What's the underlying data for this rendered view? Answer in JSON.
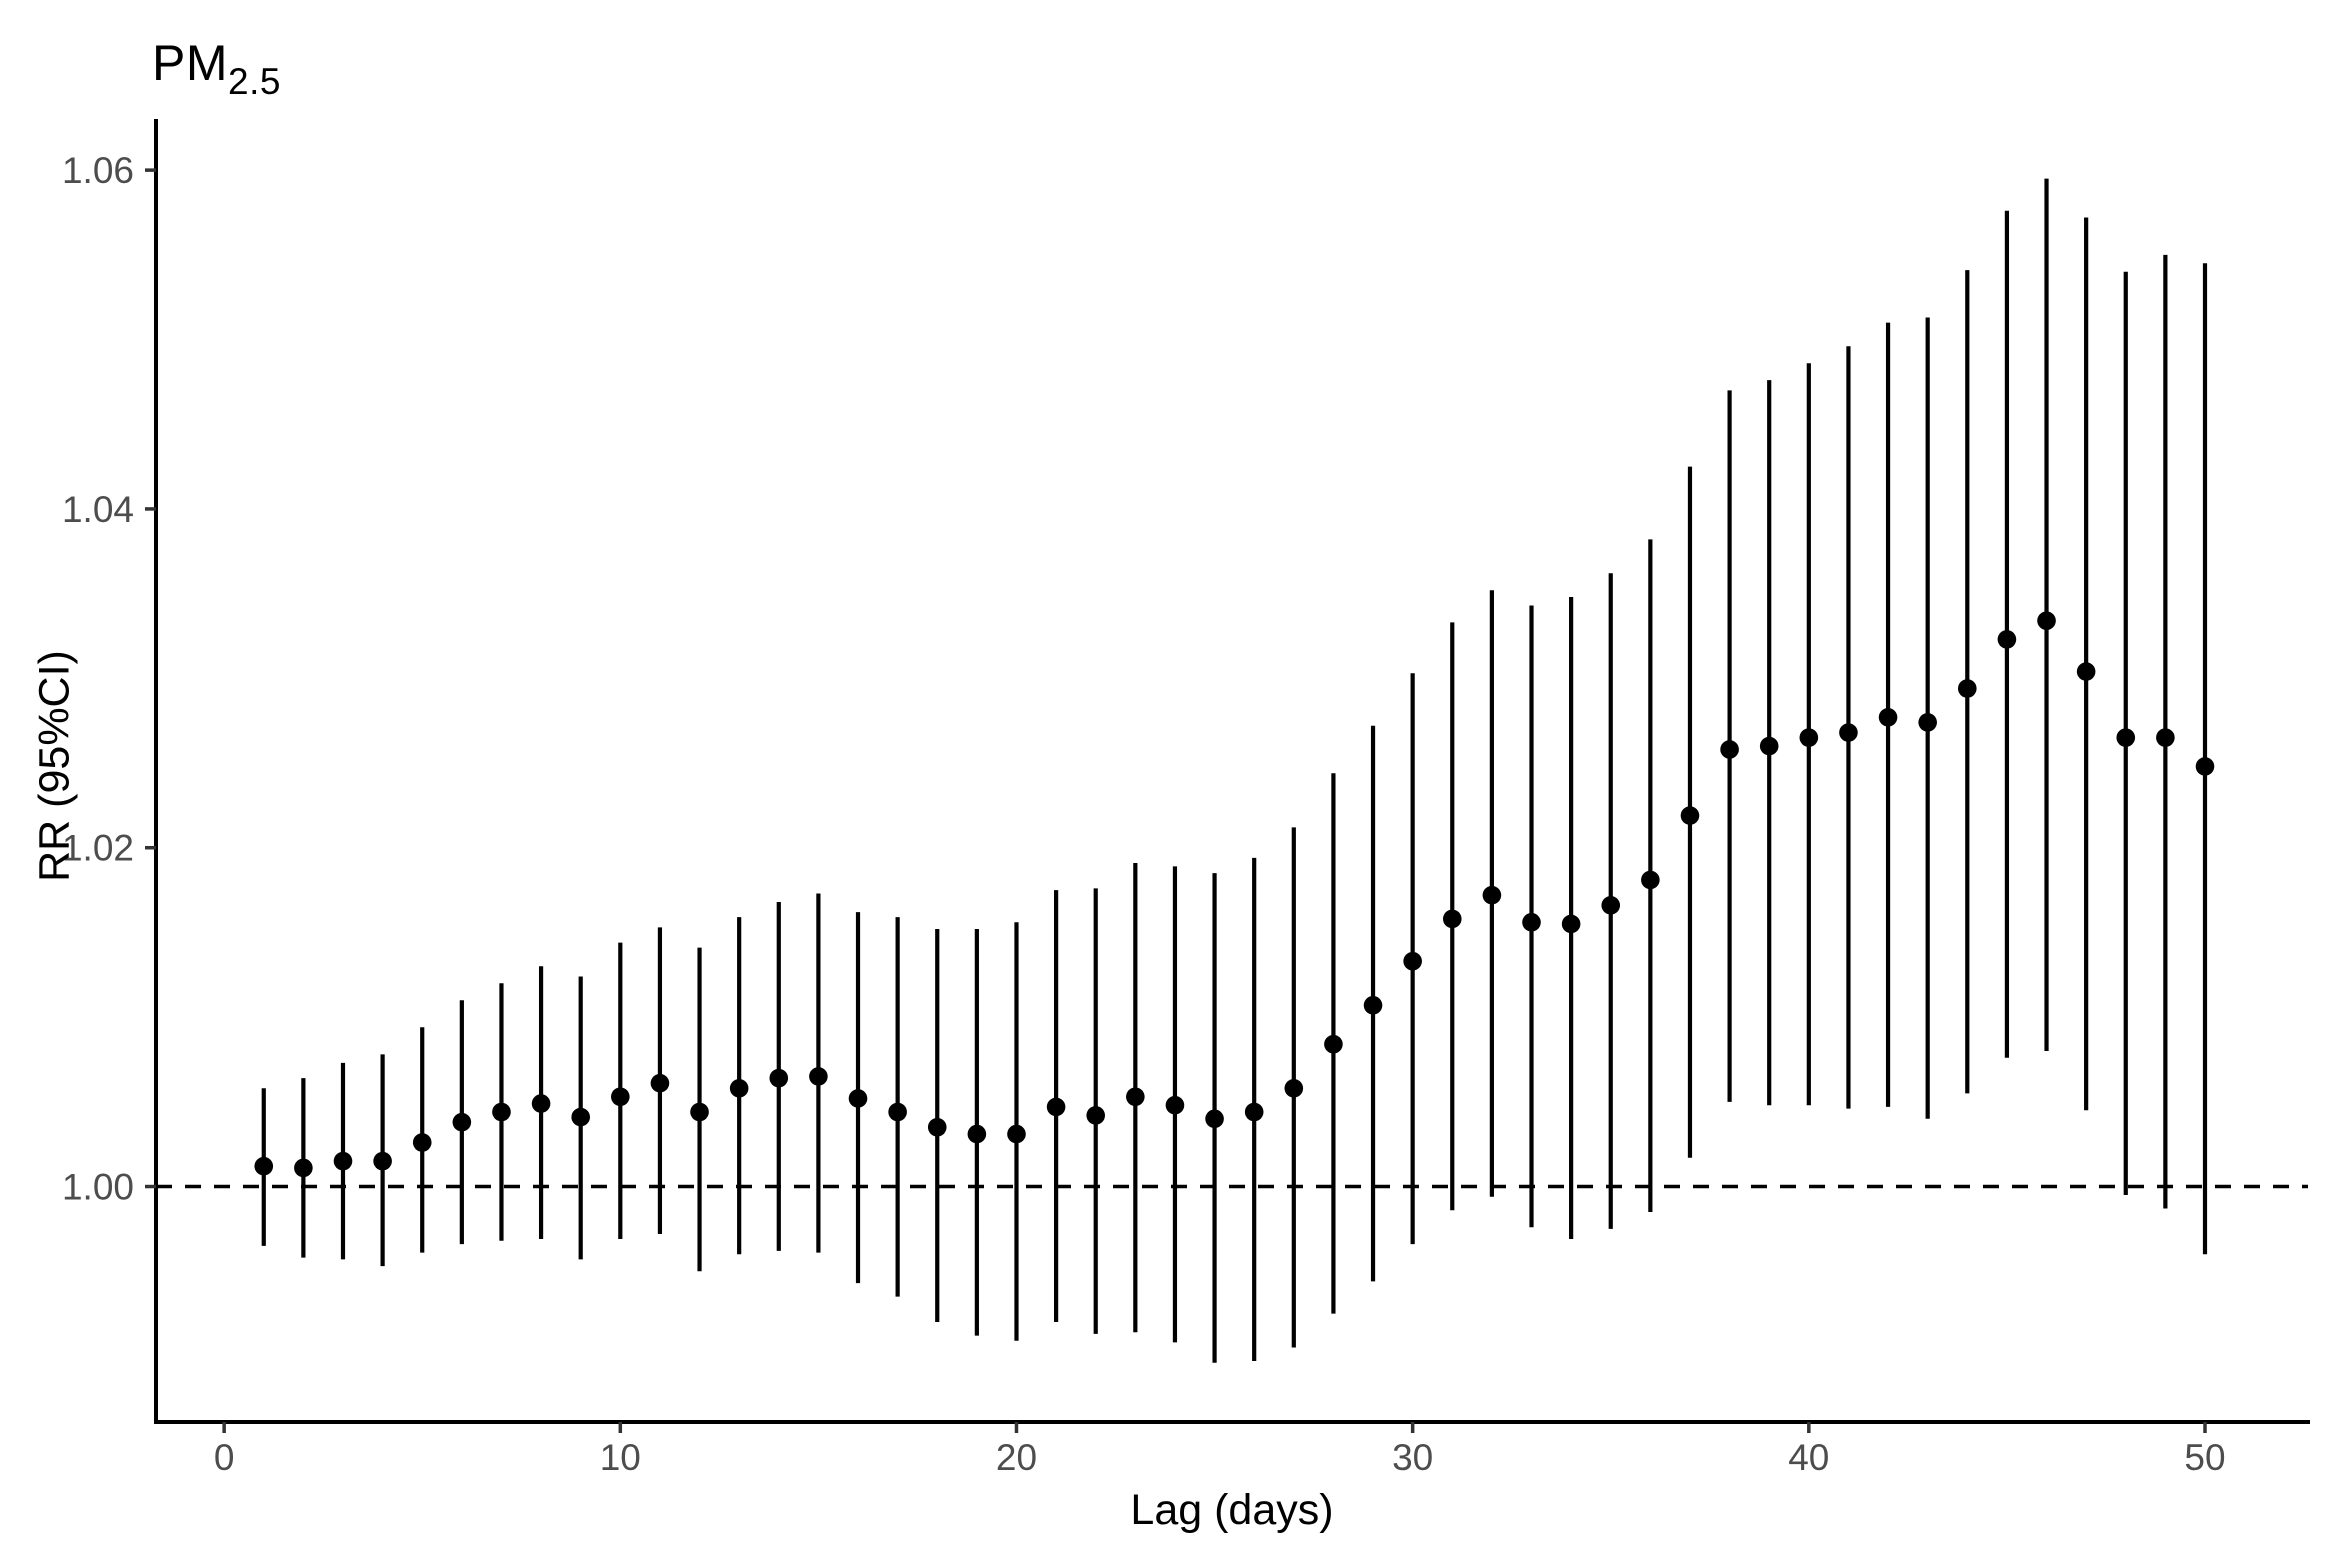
{
  "title": {
    "main": "PM",
    "sub": "2.5"
  },
  "axes": {
    "x_title": "Lag (days)",
    "y_title": "RR (95%CI)"
  },
  "chart_data": {
    "type": "scatter",
    "error_bars": true,
    "title": "PM2.5",
    "xlabel": "Lag (days)",
    "ylabel": "RR (95%CI)",
    "xlim": [
      -1.72,
      52.6
    ],
    "ylim": [
      0.9861,
      1.0629
    ],
    "grid": "off",
    "legend": "none",
    "reference_line_y": 1.0,
    "reference_line_style": "dashed",
    "x_ticks": [
      {
        "v": 0,
        "label": "0"
      },
      {
        "v": 10,
        "label": "10"
      },
      {
        "v": 20,
        "label": "20"
      },
      {
        "v": 30,
        "label": "30"
      },
      {
        "v": 40,
        "label": "40"
      },
      {
        "v": 50,
        "label": "50"
      }
    ],
    "y_ticks": [
      {
        "v": 1.0,
        "label": "1.00"
      },
      {
        "v": 1.02,
        "label": "1.02"
      },
      {
        "v": 1.04,
        "label": "1.04"
      },
      {
        "v": 1.06,
        "label": "1.06"
      }
    ],
    "colors": {
      "point": "#000000",
      "error_bar": "#000000",
      "axis_line": "#000000",
      "tick_mark": "#333333",
      "tick_label": "#4d4d4d",
      "background": "#ffffff"
    },
    "points": [
      {
        "lag": 1,
        "rr": 1.0012,
        "lo": 0.9965,
        "hi": 1.0058
      },
      {
        "lag": 2,
        "rr": 1.0011,
        "lo": 0.9958,
        "hi": 1.0064
      },
      {
        "lag": 3,
        "rr": 1.0015,
        "lo": 0.9957,
        "hi": 1.0073
      },
      {
        "lag": 4,
        "rr": 1.0015,
        "lo": 0.9953,
        "hi": 1.0078
      },
      {
        "lag": 5,
        "rr": 1.0026,
        "lo": 0.9961,
        "hi": 1.0094
      },
      {
        "lag": 6,
        "rr": 1.0038,
        "lo": 0.9966,
        "hi": 1.011
      },
      {
        "lag": 7,
        "rr": 1.0044,
        "lo": 0.9968,
        "hi": 1.012
      },
      {
        "lag": 8,
        "rr": 1.0049,
        "lo": 0.9969,
        "hi": 1.013
      },
      {
        "lag": 9,
        "rr": 1.0041,
        "lo": 0.9957,
        "hi": 1.0124
      },
      {
        "lag": 10,
        "rr": 1.0053,
        "lo": 0.9969,
        "hi": 1.0144
      },
      {
        "lag": 11,
        "rr": 1.0061,
        "lo": 0.9972,
        "hi": 1.0153
      },
      {
        "lag": 12,
        "rr": 1.0044,
        "lo": 0.995,
        "hi": 1.0141
      },
      {
        "lag": 13,
        "rr": 1.0058,
        "lo": 0.996,
        "hi": 1.0159
      },
      {
        "lag": 14,
        "rr": 1.0064,
        "lo": 0.9962,
        "hi": 1.0168
      },
      {
        "lag": 15,
        "rr": 1.0065,
        "lo": 0.9961,
        "hi": 1.0173
      },
      {
        "lag": 16,
        "rr": 1.0052,
        "lo": 0.9943,
        "hi": 1.0162
      },
      {
        "lag": 17,
        "rr": 1.0044,
        "lo": 0.9935,
        "hi": 1.0159
      },
      {
        "lag": 18,
        "rr": 1.0035,
        "lo": 0.992,
        "hi": 1.0152
      },
      {
        "lag": 19,
        "rr": 1.0031,
        "lo": 0.9912,
        "hi": 1.0152
      },
      {
        "lag": 20,
        "rr": 1.0031,
        "lo": 0.9909,
        "hi": 1.0156
      },
      {
        "lag": 21,
        "rr": 1.0047,
        "lo": 0.992,
        "hi": 1.0175
      },
      {
        "lag": 22,
        "rr": 1.0042,
        "lo": 0.9913,
        "hi": 1.0176
      },
      {
        "lag": 23,
        "rr": 1.0053,
        "lo": 0.9914,
        "hi": 1.0191
      },
      {
        "lag": 24,
        "rr": 1.0048,
        "lo": 0.9908,
        "hi": 1.0189
      },
      {
        "lag": 25,
        "rr": 1.004,
        "lo": 0.9896,
        "hi": 1.0185
      },
      {
        "lag": 26,
        "rr": 1.0044,
        "lo": 0.9897,
        "hi": 1.0194
      },
      {
        "lag": 27,
        "rr": 1.0058,
        "lo": 0.9905,
        "hi": 1.0212
      },
      {
        "lag": 28,
        "rr": 1.0084,
        "lo": 0.9925,
        "hi": 1.0244
      },
      {
        "lag": 29,
        "rr": 1.0107,
        "lo": 0.9944,
        "hi": 1.0272
      },
      {
        "lag": 30,
        "rr": 1.0133,
        "lo": 0.9966,
        "hi": 1.0303
      },
      {
        "lag": 31,
        "rr": 1.0158,
        "lo": 0.9986,
        "hi": 1.0333
      },
      {
        "lag": 32,
        "rr": 1.0172,
        "lo": 0.9994,
        "hi": 1.0352
      },
      {
        "lag": 33,
        "rr": 1.0156,
        "lo": 0.9976,
        "hi": 1.0343
      },
      {
        "lag": 34,
        "rr": 1.0155,
        "lo": 0.9969,
        "hi": 1.0348
      },
      {
        "lag": 35,
        "rr": 1.0166,
        "lo": 0.9975,
        "hi": 1.0362
      },
      {
        "lag": 36,
        "rr": 1.0181,
        "lo": 0.9985,
        "hi": 1.0382
      },
      {
        "lag": 37,
        "rr": 1.0219,
        "lo": 1.0017,
        "hi": 1.0425
      },
      {
        "lag": 38,
        "rr": 1.0258,
        "lo": 1.005,
        "hi": 1.047
      },
      {
        "lag": 39,
        "rr": 1.026,
        "lo": 1.0048,
        "hi": 1.0476
      },
      {
        "lag": 40,
        "rr": 1.0265,
        "lo": 1.0048,
        "hi": 1.0486
      },
      {
        "lag": 41,
        "rr": 1.0268,
        "lo": 1.0046,
        "hi": 1.0496
      },
      {
        "lag": 42,
        "rr": 1.0277,
        "lo": 1.0047,
        "hi": 1.051
      },
      {
        "lag": 43,
        "rr": 1.0274,
        "lo": 1.004,
        "hi": 1.0513
      },
      {
        "lag": 44,
        "rr": 1.0294,
        "lo": 1.0055,
        "hi": 1.0541
      },
      {
        "lag": 45,
        "rr": 1.0323,
        "lo": 1.0076,
        "hi": 1.0576
      },
      {
        "lag": 46,
        "rr": 1.0334,
        "lo": 1.008,
        "hi": 1.0595
      },
      {
        "lag": 47,
        "rr": 1.0304,
        "lo": 1.0045,
        "hi": 1.0572
      },
      {
        "lag": 48,
        "rr": 1.0265,
        "lo": 0.9995,
        "hi": 1.054
      },
      {
        "lag": 49,
        "rr": 1.0265,
        "lo": 0.9987,
        "hi": 1.055
      },
      {
        "lag": 50,
        "rr": 1.0248,
        "lo": 0.996,
        "hi": 1.0545
      }
    ]
  }
}
